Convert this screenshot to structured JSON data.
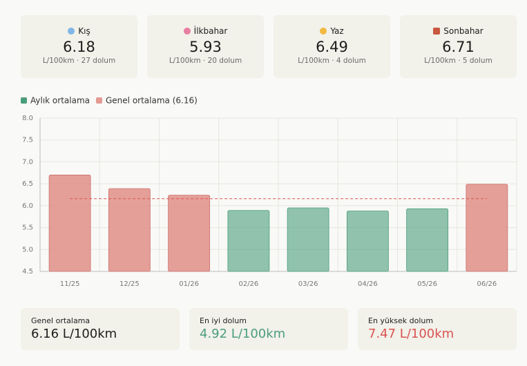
{
  "seasons": [
    {
      "name": "Kış",
      "value": "6.18",
      "detail": "L/100km · 27 dolum"
    },
    {
      "name": "İlkbahar",
      "value": "5.93",
      "detail": "L/100km · 20 dolum"
    },
    {
      "name": "Yaz",
      "value": "6.49",
      "detail": "L/100km · 4 dolum"
    },
    {
      "name": "Sonbahar",
      "value": "6.71",
      "detail": "L/100km · 5 dolum"
    }
  ],
  "chart_data": {
    "type": "bar",
    "categories": [
      "11/25",
      "12/25",
      "01/26",
      "02/26",
      "03/26",
      "04/26",
      "05/26",
      "06/26"
    ],
    "series": [
      {
        "name": "Aylık ortalama",
        "color": "#4a9d7b",
        "values": [
          6.7,
          6.39,
          6.24,
          5.89,
          5.95,
          5.88,
          5.93,
          6.49
        ]
      },
      {
        "name": "Genel ortalama (6.16)",
        "color": "#e49a93",
        "value": 6.16
      }
    ],
    "ylim": [
      4.5,
      8.0
    ],
    "yticks": [
      4.5,
      {
        "value": 5,
        "label": "5.0"
      },
      5.5,
      {
        "value": 6,
        "label": "6.0"
      },
      6.5,
      {
        "value": 7,
        "label": "7.0"
      },
      7.5,
      {
        "value": 8,
        "label": "8.0"
      }
    ],
    "grid": true
  },
  "stats": [
    {
      "label": "Genel ortalama",
      "value": "6.16 L/100km"
    },
    {
      "label": "En iyi dolum",
      "value": "4.92 L/100km"
    },
    {
      "label": "En yüksek dolum",
      "value": "7.47 L/100km"
    }
  ]
}
